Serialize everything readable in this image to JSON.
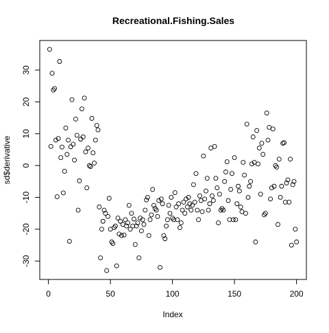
{
  "chart_data": {
    "type": "scatter",
    "title": "Recreational.Fishing.Sales",
    "x_label": "Index",
    "y_label": "sd$derivative",
    "x": [
      1,
      2,
      3,
      4,
      5,
      6,
      7,
      8,
      9,
      10,
      11,
      12,
      13,
      14,
      15,
      16,
      17,
      18,
      19,
      20,
      21,
      22,
      23,
      24,
      25,
      26,
      27,
      28,
      29,
      30,
      31,
      32,
      33,
      34,
      35,
      36,
      37,
      38,
      39,
      40,
      41,
      42,
      43,
      44,
      45,
      46,
      47,
      48,
      49,
      50,
      51,
      52,
      53,
      54,
      55,
      56,
      57,
      58,
      59,
      60,
      61,
      62,
      63,
      64,
      65,
      66,
      67,
      68,
      69,
      70,
      71,
      72,
      73,
      74,
      75,
      76,
      77,
      78,
      79,
      80,
      81,
      82,
      83,
      84,
      85,
      86,
      87,
      88,
      89,
      90,
      91,
      92,
      93,
      94,
      95,
      96,
      97,
      98,
      99,
      100,
      101,
      102,
      103,
      104,
      105,
      106,
      107,
      108,
      109,
      110,
      111,
      112,
      113,
      114,
      115,
      116,
      117,
      118,
      119,
      120,
      121,
      122,
      123,
      124,
      125,
      126,
      127,
      128,
      129,
      130,
      131,
      132,
      133,
      134,
      135,
      136,
      137,
      138,
      139,
      140,
      141,
      142,
      143,
      144,
      145,
      146,
      147,
      148,
      149,
      150,
      151,
      152,
      153,
      154,
      155,
      156,
      157,
      158,
      159,
      160,
      161,
      162,
      163,
      164,
      165,
      166,
      167,
      168,
      169,
      170,
      171,
      172,
      173,
      174,
      175,
      176,
      177,
      178,
      179,
      180,
      181,
      182,
      183,
      184,
      185,
      186,
      187,
      188,
      189,
      190,
      191,
      192,
      193,
      194,
      195,
      196,
      197,
      198,
      199,
      200
    ],
    "values": [
      36.5,
      6,
      29,
      23.7,
      24.2,
      8,
      -9.8,
      8.5,
      32.7,
      2.5,
      5.8,
      -8.6,
      -1.8,
      11.8,
      3.5,
      8,
      -23.8,
      5.9,
      20.7,
      6.7,
      1.7,
      14.6,
      9.5,
      -14,
      -4.8,
      8.3,
      17.8,
      9,
      21.2,
      4.3,
      -7,
      5.5,
      0,
      -0.3,
      14.8,
      4,
      0.8,
      8,
      12.6,
      11.2,
      -13,
      -29,
      -20,
      -17.5,
      -14,
      -15,
      -33,
      -16,
      -10.3,
      -20,
      -24,
      -24.5,
      -19.5,
      -19,
      -31.5,
      -16.5,
      -21.5,
      -17.5,
      -22,
      -18.5,
      -21.8,
      -17,
      -19,
      -18,
      -12.5,
      -20,
      -15,
      -19,
      -16.8,
      -24.8,
      -19,
      -18,
      -29,
      -16.5,
      -20.5,
      -17,
      -18.5,
      -14,
      -10.8,
      -10,
      -22,
      -17,
      -15.5,
      -7.5,
      -12.5,
      -13.5,
      -14,
      -16,
      -11,
      -32,
      -10.5,
      -12,
      -22,
      -23,
      -19,
      -17,
      -12.5,
      -15,
      -10,
      -16.5,
      -17,
      -8.5,
      -13,
      -17,
      -12,
      -19.5,
      -18,
      -14,
      -11.5,
      -15,
      -10.5,
      -13,
      -10,
      -12,
      -14,
      -12.5,
      -6,
      -11.5,
      -2.5,
      -14,
      -17,
      -9.5,
      -11,
      -14.5,
      3,
      -10.5,
      -8,
      -4,
      -14,
      -12,
      5.5,
      -9.5,
      -11,
      6,
      -4,
      -7,
      -18,
      -9,
      -14,
      -13.5,
      -14,
      -5,
      -2,
      1.2,
      -11,
      -17,
      -7.5,
      -2.5,
      -17,
      2.5,
      -17,
      -12,
      -6.5,
      -8,
      -13,
      -14.5,
      1,
      -3,
      -15,
      13,
      -10,
      -6.5,
      -5,
      0.5,
      9,
      1,
      -24,
      11,
      0.5,
      5.5,
      -9,
      7,
      3.5,
      -15.5,
      -15,
      16.5,
      8,
      12,
      -10.5,
      -7,
      11.5,
      -6.5,
      0,
      -0.5,
      -18.5,
      2,
      -10,
      -6.5,
      7,
      7.2,
      -11.5,
      -5.5,
      -4.5,
      -11.5,
      2,
      -25,
      -6,
      -5,
      -20,
      -24
    ],
    "color": "#000000",
    "xlim": [
      -6.96,
      207.96
    ],
    "xticks": [
      0,
      50,
      100,
      150,
      200
    ],
    "ylim": [
      -35.78,
      39.28
    ],
    "yticks": [
      -30,
      -20,
      -10,
      0,
      10,
      20,
      30
    ]
  }
}
